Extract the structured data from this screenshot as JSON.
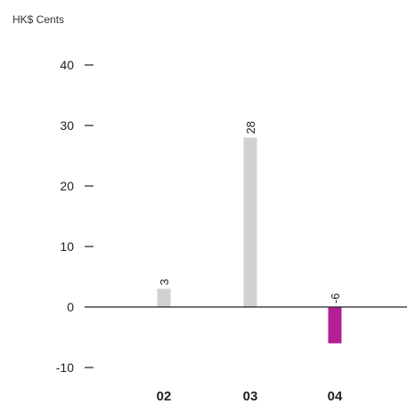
{
  "chart_data": {
    "type": "bar",
    "unit_label": "HK$ Cents",
    "categories": [
      "02",
      "03",
      "04"
    ],
    "highlight_category": "04",
    "values": [
      3,
      28,
      -6
    ],
    "data_labels": [
      "3",
      "28",
      "-6"
    ],
    "y_ticks": [
      40,
      30,
      20,
      10,
      0,
      -10
    ],
    "y_tick_labels": [
      "40",
      "30",
      "20",
      "10",
      "0",
      "-10"
    ],
    "ylim": [
      -10,
      40
    ],
    "grid": false,
    "legend": "none",
    "colors": {
      "normal": "#d1d1d1",
      "highlight": "#b41f93",
      "axis": "#222222",
      "text": "#222222"
    }
  }
}
